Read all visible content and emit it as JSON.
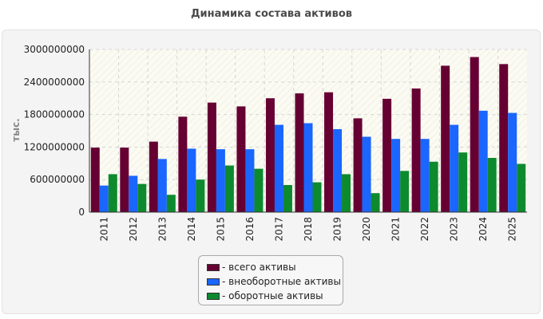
{
  "chart_data": {
    "type": "bar",
    "title": "Динамика состава активов",
    "ylabel": "тыс.",
    "xlabel": "",
    "categories": [
      "2011",
      "2012",
      "2013",
      "2014",
      "2015",
      "2016",
      "2017",
      "2018",
      "2019",
      "2020",
      "2021",
      "2022",
      "2023",
      "2024",
      "2025"
    ],
    "yticks": [
      "0",
      "600000000",
      "1200000000",
      "1800000000",
      "2400000000",
      "3000000000"
    ],
    "ylim": [
      0,
      3000000000
    ],
    "grid": true,
    "legend_position": "bottom",
    "series": [
      {
        "name": "- всего активы",
        "color": "#660033",
        "values": [
          1190000000,
          1190000000,
          1300000000,
          1760000000,
          2020000000,
          1950000000,
          2100000000,
          2190000000,
          2210000000,
          1730000000,
          2090000000,
          2280000000,
          2700000000,
          2860000000,
          2730000000
        ]
      },
      {
        "name": "- внеоборотные активы",
        "color": "#1a66ff",
        "values": [
          490000000,
          670000000,
          980000000,
          1170000000,
          1160000000,
          1160000000,
          1610000000,
          1640000000,
          1530000000,
          1390000000,
          1350000000,
          1350000000,
          1610000000,
          1870000000,
          1830000000
        ]
      },
      {
        "name": "- оборотные активы",
        "color": "#0d8a2e",
        "values": [
          700000000,
          520000000,
          320000000,
          600000000,
          860000000,
          800000000,
          500000000,
          550000000,
          700000000,
          350000000,
          760000000,
          930000000,
          1100000000,
          1000000000,
          890000000
        ]
      }
    ]
  }
}
